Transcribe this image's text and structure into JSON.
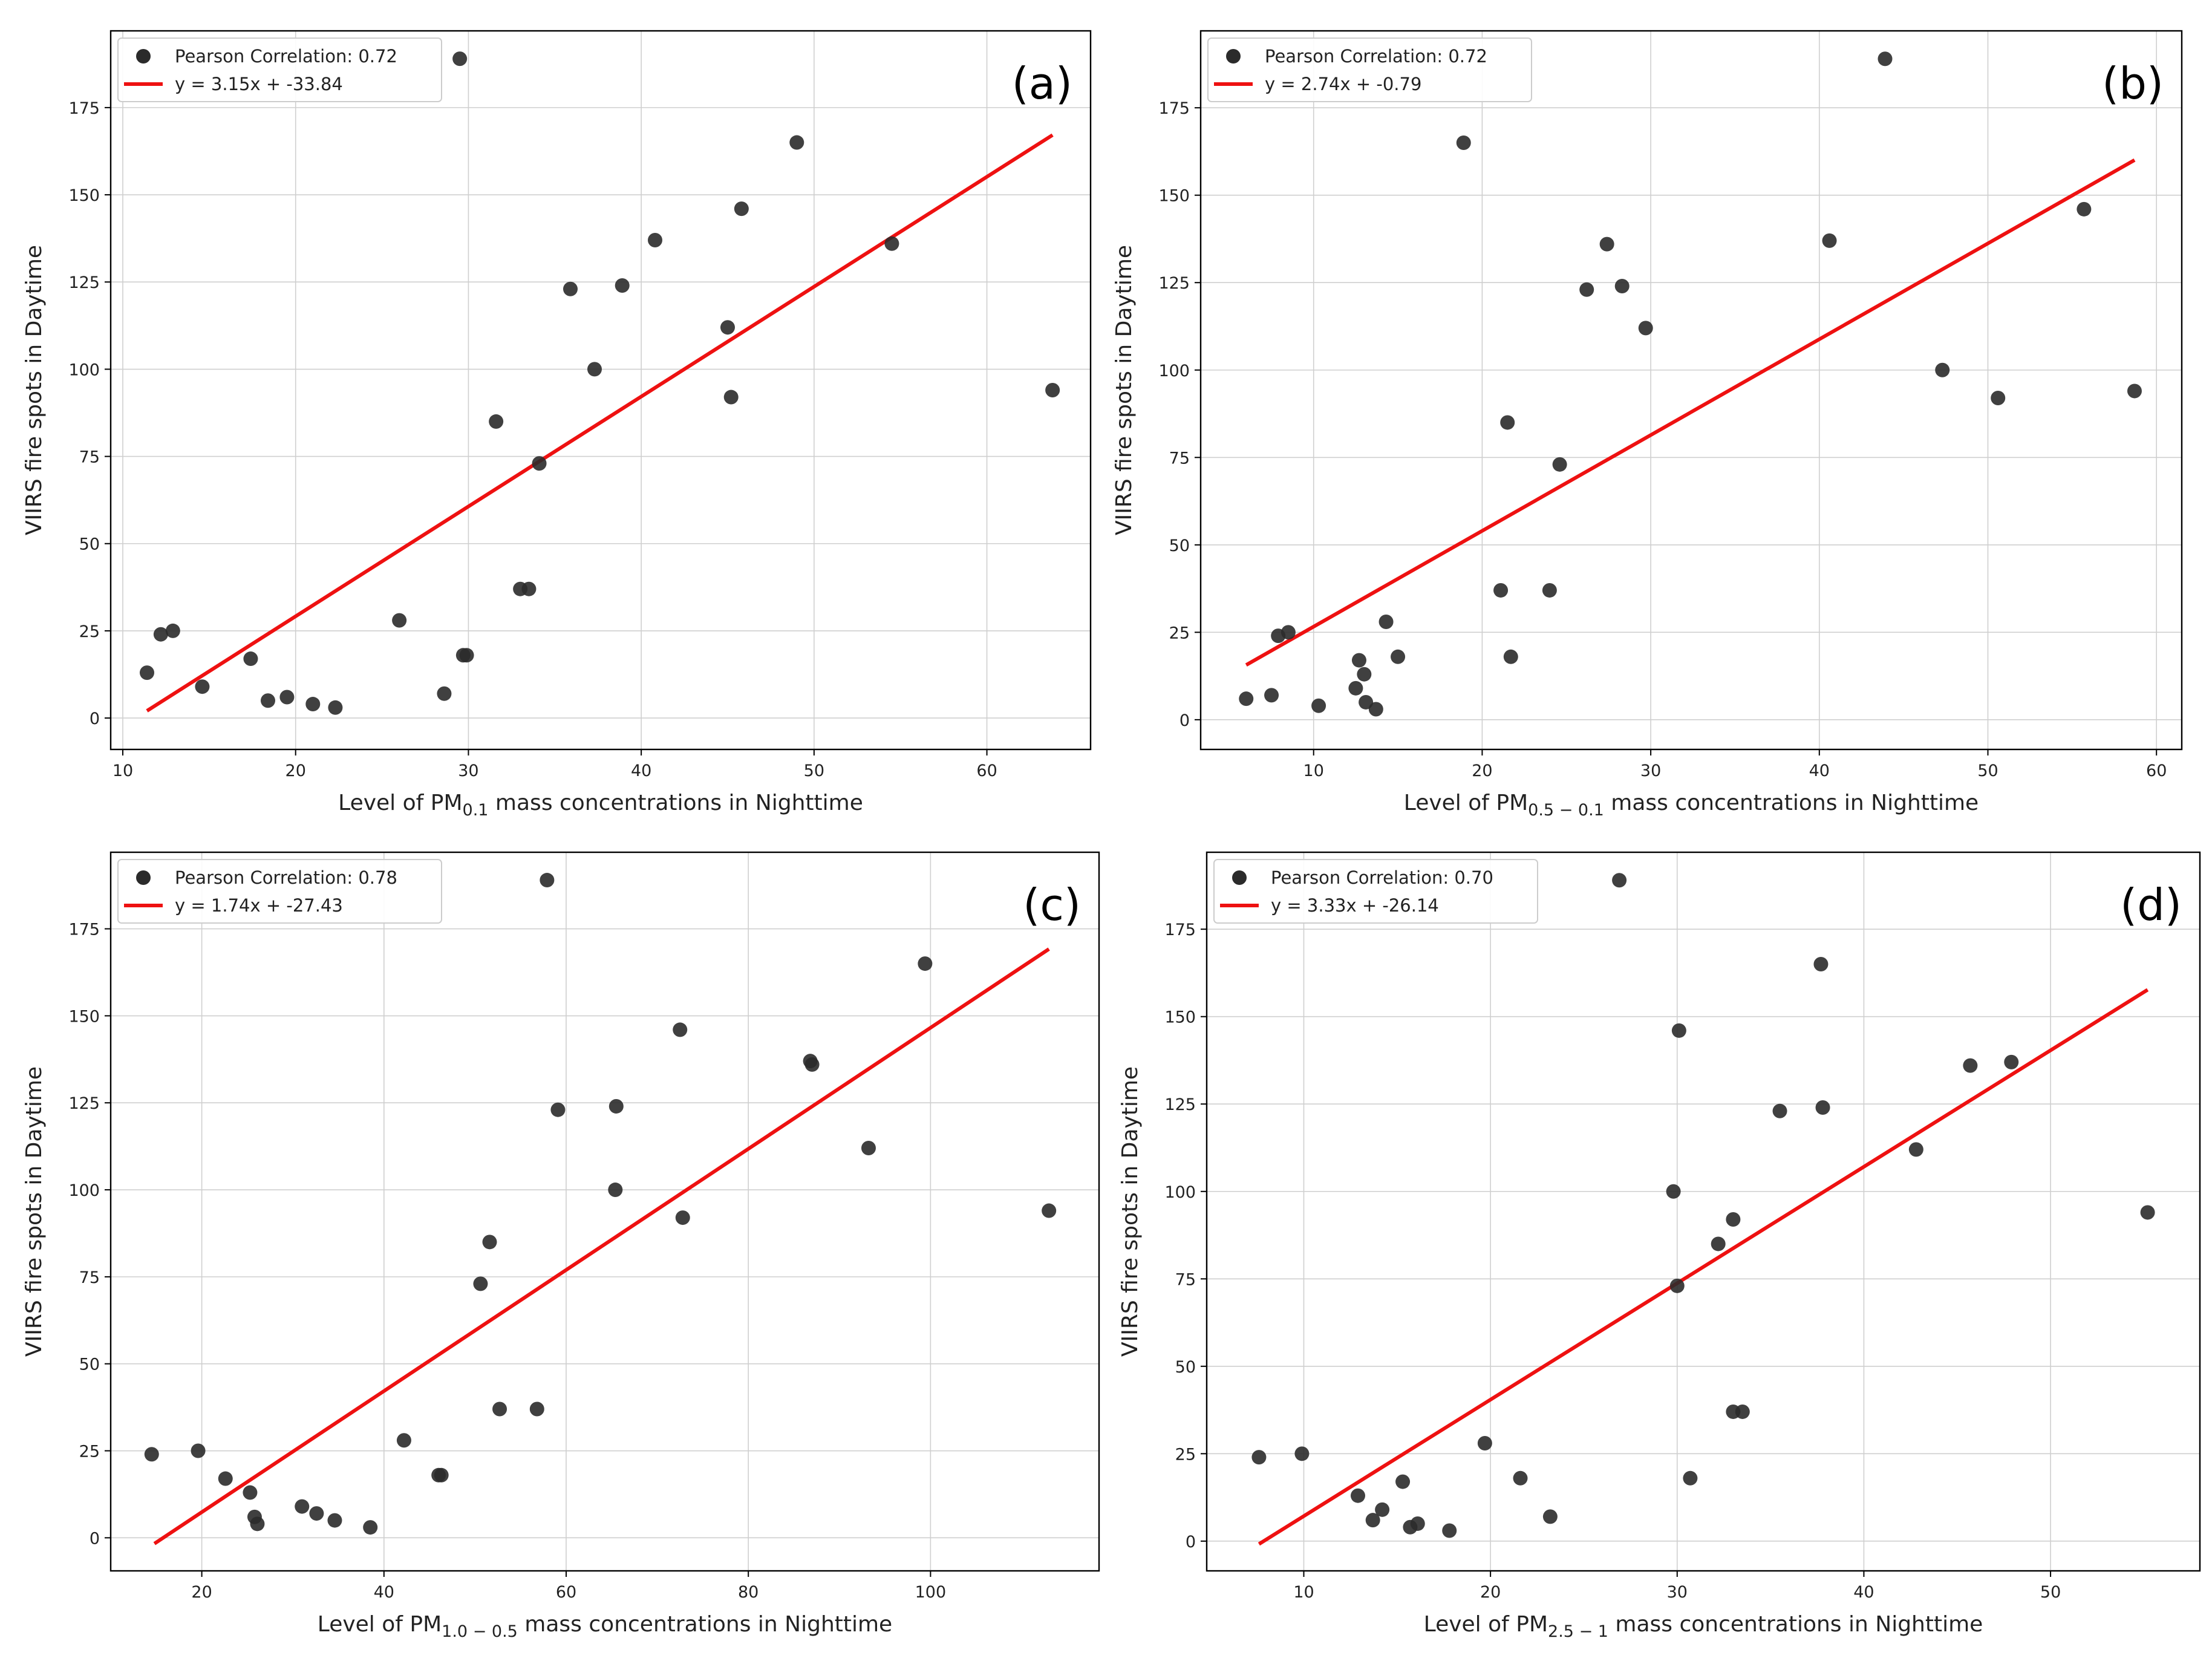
{
  "colors": {
    "points": "#2b2b2b",
    "fit_line": "#ee1111"
  },
  "chart_data": [
    {
      "type": "scatter",
      "panel_label": "(a)",
      "xlabel": {
        "pre": "Level of PM",
        "sub": "0.1",
        "post": " mass concentrations in Nighttime"
      },
      "ylabel": "VIIRS fire spots in Daytime",
      "xlim": [
        9.3,
        66.0
      ],
      "ylim": [
        -9,
        197
      ],
      "xticks": [
        10,
        20,
        30,
        40,
        50,
        60
      ],
      "yticks": [
        0,
        25,
        50,
        75,
        100,
        125,
        150,
        175
      ],
      "legend": {
        "points_label": "Pearson Correlation: 0.72",
        "line_label": "y = 3.15x + -33.84",
        "location": "upper-left"
      },
      "fit": {
        "slope": 3.15,
        "intercept": -33.84,
        "x_range": [
          11.4,
          63.8
        ]
      },
      "points": [
        [
          11.4,
          13
        ],
        [
          12.2,
          24
        ],
        [
          12.9,
          25
        ],
        [
          14.6,
          9
        ],
        [
          17.4,
          17
        ],
        [
          18.4,
          5
        ],
        [
          19.5,
          6
        ],
        [
          21.0,
          4
        ],
        [
          22.3,
          3
        ],
        [
          26.0,
          28
        ],
        [
          28.6,
          7
        ],
        [
          29.7,
          18
        ],
        [
          29.9,
          18
        ],
        [
          29.5,
          189
        ],
        [
          31.6,
          85
        ],
        [
          33.0,
          37
        ],
        [
          33.5,
          37
        ],
        [
          34.1,
          73
        ],
        [
          35.9,
          123
        ],
        [
          37.3,
          100
        ],
        [
          38.9,
          124
        ],
        [
          40.8,
          137
        ],
        [
          45.0,
          112
        ],
        [
          45.2,
          92
        ],
        [
          45.8,
          146
        ],
        [
          49.0,
          165
        ],
        [
          54.5,
          136
        ],
        [
          63.8,
          94
        ]
      ]
    },
    {
      "type": "scatter",
      "panel_label": "(b)",
      "xlabel": {
        "pre": "Level of PM",
        "sub": "0.5 − 0.1",
        "post": " mass concentrations in Nighttime"
      },
      "ylabel": "VIIRS fire spots in Daytime",
      "xlim": [
        3.3,
        61.5
      ],
      "ylim": [
        -8.5,
        197
      ],
      "xticks": [
        10,
        20,
        30,
        40,
        50,
        60
      ],
      "yticks": [
        0,
        25,
        50,
        75,
        100,
        125,
        150,
        175
      ],
      "legend": {
        "points_label": "Pearson Correlation: 0.72",
        "line_label": "y = 2.74x + -0.79",
        "location": "upper-left"
      },
      "fit": {
        "slope": 2.74,
        "intercept": -0.79,
        "x_range": [
          6.0,
          58.7
        ]
      },
      "points": [
        [
          6.0,
          6
        ],
        [
          7.5,
          7
        ],
        [
          7.9,
          24
        ],
        [
          8.5,
          25
        ],
        [
          10.3,
          4
        ],
        [
          12.5,
          9
        ],
        [
          12.7,
          17
        ],
        [
          13.0,
          13
        ],
        [
          13.1,
          5
        ],
        [
          13.7,
          3
        ],
        [
          14.3,
          28
        ],
        [
          15.0,
          18
        ],
        [
          18.9,
          165
        ],
        [
          21.1,
          37
        ],
        [
          21.5,
          85
        ],
        [
          21.7,
          18
        ],
        [
          24.0,
          37
        ],
        [
          24.6,
          73
        ],
        [
          26.2,
          123
        ],
        [
          27.4,
          136
        ],
        [
          28.3,
          124
        ],
        [
          29.7,
          112
        ],
        [
          40.6,
          137
        ],
        [
          43.9,
          189
        ],
        [
          47.3,
          100
        ],
        [
          50.6,
          92
        ],
        [
          55.7,
          146
        ],
        [
          58.7,
          94
        ]
      ]
    },
    {
      "type": "scatter",
      "panel_label": "(c)",
      "xlabel": {
        "pre": "Level of PM",
        "sub": "1.0 − 0.5",
        "post": " mass concentrations in Nighttime"
      },
      "ylabel": "VIIRS fire spots in Daytime",
      "xlim": [
        10.0,
        118.5
      ],
      "ylim": [
        -9.5,
        197
      ],
      "xticks": [
        20,
        40,
        60,
        80,
        100
      ],
      "yticks": [
        0,
        25,
        50,
        75,
        100,
        125,
        150,
        175
      ],
      "legend": {
        "points_label": "Pearson Correlation: 0.78",
        "line_label": "y = 1.74x + -27.43",
        "location": "upper-left"
      },
      "fit": {
        "slope": 1.74,
        "intercept": -27.43,
        "x_range": [
          14.8,
          113.0
        ]
      },
      "points": [
        [
          14.5,
          24
        ],
        [
          19.6,
          25
        ],
        [
          22.6,
          17
        ],
        [
          25.3,
          13
        ],
        [
          25.8,
          6
        ],
        [
          26.1,
          4
        ],
        [
          31.0,
          9
        ],
        [
          32.6,
          7
        ],
        [
          34.6,
          5
        ],
        [
          38.5,
          3
        ],
        [
          42.2,
          28
        ],
        [
          46.0,
          18
        ],
        [
          46.3,
          18
        ],
        [
          50.6,
          73
        ],
        [
          51.6,
          85
        ],
        [
          52.7,
          37
        ],
        [
          56.8,
          37
        ],
        [
          57.9,
          189
        ],
        [
          59.1,
          123
        ],
        [
          65.4,
          100
        ],
        [
          65.5,
          124
        ],
        [
          72.5,
          146
        ],
        [
          72.8,
          92
        ],
        [
          86.8,
          137
        ],
        [
          87.0,
          136
        ],
        [
          93.2,
          112
        ],
        [
          99.4,
          165
        ],
        [
          113.0,
          94
        ]
      ]
    },
    {
      "type": "scatter",
      "panel_label": "(d)",
      "xlabel": {
        "pre": "Level of PM",
        "sub": "2.5 − 1",
        "post": " mass concentrations in Nighttime"
      },
      "ylabel": "VIIRS fire spots in Daytime",
      "xlim": [
        4.8,
        58.0
      ],
      "ylim": [
        -8.5,
        197
      ],
      "xticks": [
        10,
        20,
        30,
        40,
        50
      ],
      "yticks": [
        0,
        25,
        50,
        75,
        100,
        125,
        150,
        175
      ],
      "legend": {
        "points_label": "Pearson Correlation: 0.70",
        "line_label": "y = 3.33x + -26.14",
        "location": "upper-left"
      },
      "fit": {
        "slope": 3.33,
        "intercept": -26.14,
        "x_range": [
          7.6,
          55.2
        ]
      },
      "points": [
        [
          7.6,
          24
        ],
        [
          9.9,
          25
        ],
        [
          12.9,
          13
        ],
        [
          13.7,
          6
        ],
        [
          14.2,
          9
        ],
        [
          15.3,
          17
        ],
        [
          15.7,
          4
        ],
        [
          16.1,
          5
        ],
        [
          17.8,
          3
        ],
        [
          19.7,
          28
        ],
        [
          21.6,
          18
        ],
        [
          23.2,
          7
        ],
        [
          26.9,
          189
        ],
        [
          29.8,
          100
        ],
        [
          30.0,
          73
        ],
        [
          30.1,
          146
        ],
        [
          30.7,
          18
        ],
        [
          32.2,
          85
        ],
        [
          33.0,
          92
        ],
        [
          33.0,
          37
        ],
        [
          33.5,
          37
        ],
        [
          35.5,
          123
        ],
        [
          37.7,
          165
        ],
        [
          37.8,
          124
        ],
        [
          42.8,
          112
        ],
        [
          45.7,
          136
        ],
        [
          47.9,
          137
        ],
        [
          55.2,
          94
        ]
      ]
    }
  ]
}
